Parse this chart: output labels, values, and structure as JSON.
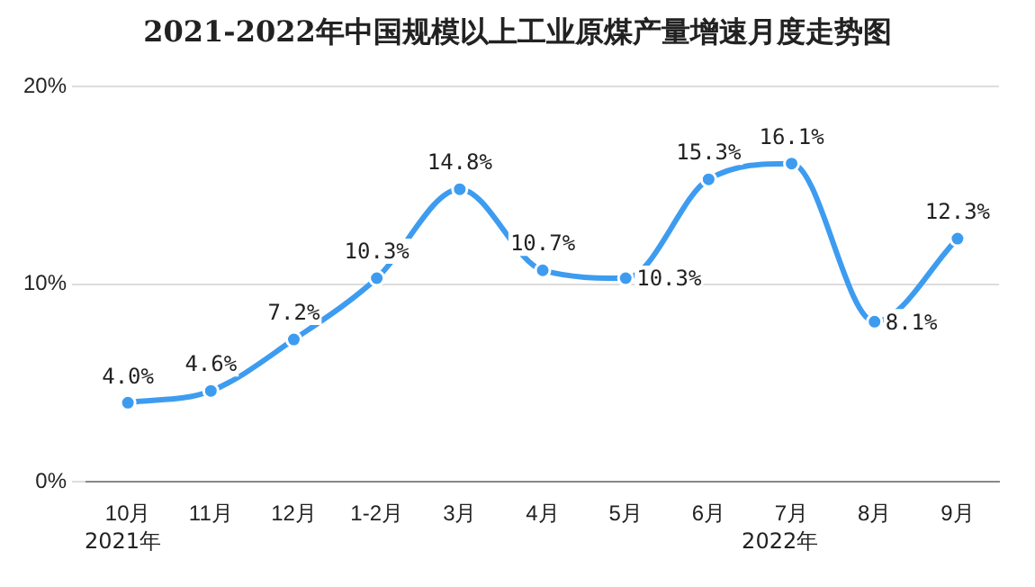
{
  "chart_data": {
    "type": "line",
    "title": "2021-2022年中国规模以上工业原煤产量增速月度走势图",
    "categories": [
      "10月",
      "11月",
      "12月",
      "1-2月",
      "3月",
      "4月",
      "5月",
      "6月",
      "7月",
      "8月",
      "9月"
    ],
    "values": [
      4.0,
      4.6,
      7.2,
      10.3,
      14.8,
      10.7,
      10.3,
      15.3,
      16.1,
      8.1,
      12.3
    ],
    "value_labels": [
      "4.0%",
      "4.6%",
      "7.2%",
      "10.3%",
      "14.8%",
      "10.7%",
      "10.3%",
      "15.3%",
      "16.1%",
      "8.1%",
      "12.3%"
    ],
    "color": "#3d9cf0",
    "ylim": [
      0,
      20
    ],
    "yticks": [
      {
        "value": 0,
        "label": "0%"
      },
      {
        "value": 10,
        "label": "10%"
      },
      {
        "value": 20,
        "label": "20%"
      }
    ],
    "grid": "y",
    "marker": "circle",
    "line_style": "solid",
    "annotations": [
      "2021年",
      "2022年"
    ]
  }
}
